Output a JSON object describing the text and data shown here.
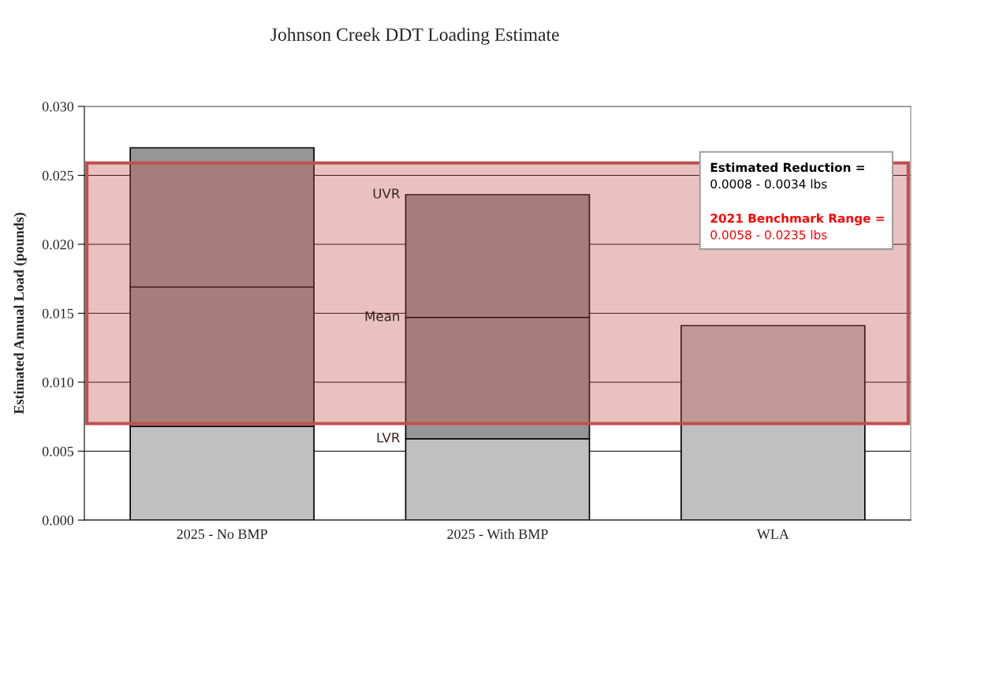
{
  "chart_data": {
    "type": "bar",
    "title": "Johnson Creek DDT Loading Estimate",
    "ylabel": "Estimated Annual Load (pounds)",
    "categories": [
      "2025 - No BMP",
      "2025 - With BMP",
      "WLA"
    ],
    "stacked": true,
    "series": [
      {
        "color": "#c0c0c0",
        "values": [
          0.0068,
          0.0059,
          0.0141
        ]
      },
      {
        "color": "#969696",
        "values": [
          0.0101,
          0.0088,
          null
        ]
      },
      {
        "color": "#969696",
        "values": [
          0.0101,
          0.0089,
          null
        ]
      }
    ],
    "ylim": [
      0,
      0.03
    ],
    "yticks": [
      {
        "value": 0,
        "label": "0.000"
      },
      {
        "value": 0.005,
        "label": "0.005"
      },
      {
        "value": 0.01,
        "label": "0.010"
      },
      {
        "value": 0.015,
        "label": "0.015"
      },
      {
        "value": 0.02,
        "label": "0.020"
      },
      {
        "value": 0.025,
        "label": "0.025"
      },
      {
        "value": 0.03,
        "label": "0.030"
      }
    ],
    "grid": "y",
    "bands": [
      {
        "axis": "y",
        "from": 0.007,
        "to": 0.0259,
        "color": "#c0504d"
      }
    ],
    "annotations": [
      "UVR",
      "Mean",
      "LVR",
      "Estimated Reduction =",
      "0.0008 - 0.0034 lbs",
      "2021 Benchmark Range =",
      "0.0058 - 0.0235 lbs"
    ]
  }
}
